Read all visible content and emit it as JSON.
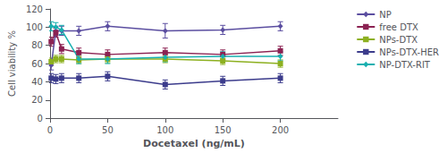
{
  "chart_data": {
    "type": "line",
    "xlabel": "Docetaxel (ng/mL)",
    "ylabel": "Cell viability %",
    "x": [
      1,
      5,
      10,
      25,
      50,
      100,
      150,
      200
    ],
    "series": [
      {
        "name": "NP",
        "color": "#5b4ea0",
        "marker": "diamond",
        "values": [
          58,
          96,
          96,
          96,
          101,
          96,
          97,
          101
        ],
        "errors": [
          5,
          5,
          5,
          5,
          5,
          8,
          5,
          5
        ]
      },
      {
        "name": "free DTX",
        "color": "#8b2252",
        "marker": "square",
        "values": [
          84,
          94,
          76,
          72,
          70,
          72,
          70,
          74
        ],
        "errors": [
          5,
          5,
          5,
          5,
          5,
          5,
          5,
          5
        ]
      },
      {
        "name": "NPs-DTX",
        "color": "#8db020",
        "marker": "square",
        "values": [
          62,
          65,
          65,
          64,
          65,
          65,
          63,
          60
        ],
        "errors": [
          4,
          4,
          4,
          4,
          4,
          4,
          4,
          4
        ]
      },
      {
        "name": "NPs-DTX-HER",
        "color": "#3c3c8c",
        "marker": "square",
        "values": [
          44,
          43,
          44,
          44,
          46,
          37,
          41,
          44
        ],
        "errors": [
          5,
          5,
          5,
          5,
          5,
          5,
          5,
          5
        ]
      },
      {
        "name": "NP-DTX-RIT",
        "color": "#18b0b0",
        "marker": "diamond",
        "values": [
          101,
          100,
          97,
          65,
          65,
          67,
          68,
          68
        ],
        "errors": [
          5,
          5,
          5,
          5,
          5,
          5,
          5,
          5
        ]
      }
    ],
    "xlim": [
      0,
      250
    ],
    "xticks": [
      0,
      50,
      100,
      150,
      200
    ],
    "ylim": [
      0,
      120
    ],
    "yticks": [
      0,
      20,
      40,
      60,
      80,
      100,
      120
    ],
    "grid": false,
    "legend": "right"
  }
}
